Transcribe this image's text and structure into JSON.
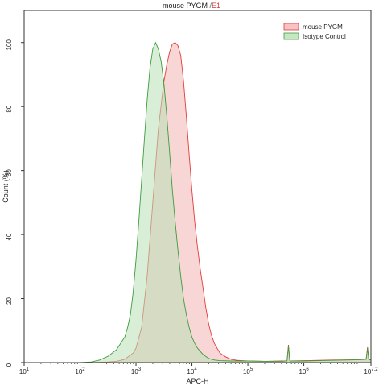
{
  "chart_data": {
    "type": "area",
    "title": {
      "main": "mouse PYGM",
      "separator": "/",
      "gate": "E1"
    },
    "xlabel": "APC-H",
    "ylabel": "Count  (%)",
    "x_scale": "log",
    "xlim": [
      10,
      15848932
    ],
    "ylim": [
      0,
      110
    ],
    "x_ticks": [
      {
        "value": 10,
        "base": "10",
        "exp": "1"
      },
      {
        "value": 100,
        "base": "10",
        "exp": "2"
      },
      {
        "value": 1000,
        "base": "10",
        "exp": "3"
      },
      {
        "value": 10000,
        "base": "10",
        "exp": "4"
      },
      {
        "value": 100000,
        "base": "10",
        "exp": "5"
      },
      {
        "value": 1000000,
        "base": "10",
        "exp": "6"
      },
      {
        "value": 15848932,
        "base": "10",
        "exp": "7.2"
      }
    ],
    "y_ticks": [
      0,
      20,
      40,
      60,
      80,
      100
    ],
    "grid": false,
    "legend_position": "top-right",
    "series": [
      {
        "name": "mouse PYGM",
        "stroke": "#e23b3b",
        "fill": "#f4b4b4",
        "fill_opacity": 0.55,
        "x": [
          158,
          224,
          316,
          447,
          631,
          891,
          1000,
          1259,
          1585,
          1995,
          2512,
          3162,
          3548,
          3981,
          4467,
          5012,
          5623,
          6310,
          7079,
          7943,
          8913,
          10000,
          11220,
          12589,
          14125,
          15849,
          17783,
          19953,
          22387,
          25119,
          31623,
          39811,
          50119,
          63096,
          100000,
          200000,
          400000,
          501187,
          530884,
          562341,
          1000000,
          3162278,
          10000000,
          13000000,
          13803843,
          14500000,
          15848932
        ],
        "values": [
          0,
          0.1,
          0.2,
          0.4,
          1,
          3,
          4.5,
          11,
          27,
          50,
          73,
          88,
          93,
          97,
          99.5,
          100,
          99,
          96,
          88,
          77,
          65,
          54,
          44,
          36,
          29,
          23,
          17,
          12,
          8.5,
          6,
          3,
          1.8,
          1,
          0.7,
          0.5,
          0.4,
          0.5,
          0.5,
          5.5,
          0.5,
          0.6,
          0.8,
          0.9,
          1.0,
          4.8,
          1.0,
          0.8
        ]
      },
      {
        "name": "Isotype Control",
        "stroke": "#3e9b3e",
        "fill": "#b9e0b4",
        "fill_opacity": 0.55,
        "x": [
          100,
          158,
          224,
          316,
          447,
          631,
          708,
          794,
          891,
          1000,
          1122,
          1259,
          1413,
          1585,
          1778,
          1995,
          2239,
          2512,
          2818,
          3162,
          3548,
          3981,
          4467,
          5012,
          5623,
          6310,
          7079,
          7943,
          8913,
          10000,
          11220,
          12589,
          15849,
          19953,
          25119,
          31623,
          50119,
          100000,
          200000,
          400000,
          501187,
          530884,
          562341,
          1000000,
          3162278,
          10000000,
          13000000,
          13803843,
          14500000,
          15848932
        ],
        "values": [
          0,
          0.2,
          0.8,
          2,
          4,
          8,
          11,
          15,
          22,
          32,
          44,
          57,
          70,
          82,
          92,
          98,
          100,
          98,
          94,
          87,
          77,
          66,
          54,
          44,
          35,
          27,
          20,
          15,
          11,
          8,
          6,
          4.5,
          2.5,
          1.3,
          0.8,
          0.6,
          0.5,
          0.5,
          0.4,
          0.4,
          0.5,
          5.0,
          0.5,
          0.5,
          0.7,
          0.9,
          1.0,
          4.3,
          1.0,
          0.8
        ]
      }
    ]
  }
}
